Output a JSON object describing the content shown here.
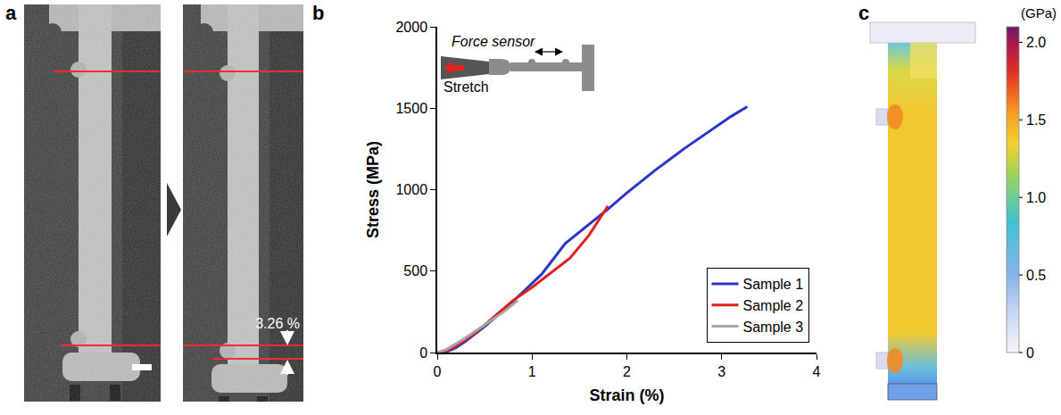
{
  "panel_labels": [
    "a",
    "b",
    "c"
  ],
  "panel_a": {
    "strain_change": "3.26 %"
  },
  "chart_data": {
    "type": "line",
    "x_label": "Strain (%)",
    "y_label": "Stress (MPa)",
    "xlim": [
      0,
      4
    ],
    "xticks": [
      0,
      1,
      2,
      3,
      4
    ],
    "ylim": [
      0,
      2000
    ],
    "yticks": [
      0,
      500,
      1000,
      1500,
      2000
    ],
    "grid": false,
    "legend": "bottom right",
    "annotations": [
      "Force sensor",
      "Stretch"
    ],
    "series": [
      {
        "name": "Sample 1",
        "color": "#2a35c8",
        "x": [
          0,
          0.1,
          0.2,
          0.3,
          0.5,
          0.7,
          0.9,
          1.1,
          1.35,
          1.5,
          1.8,
          2.0,
          2.3,
          2.6,
          2.9,
          3.1,
          3.27
        ],
        "values": [
          0,
          5,
          30,
          70,
          160,
          260,
          370,
          480,
          670,
          740,
          880,
          980,
          1120,
          1250,
          1370,
          1450,
          1510
        ]
      },
      {
        "name": "Sample 2",
        "color": "#e0201e",
        "x": [
          0,
          0.1,
          0.2,
          0.4,
          0.6,
          0.8,
          1.0,
          1.2,
          1.4,
          1.6,
          1.8
        ],
        "values": [
          0,
          10,
          40,
          120,
          220,
          320,
          400,
          490,
          580,
          720,
          900
        ]
      },
      {
        "name": "Sample 3",
        "color": "#a6a6a6",
        "x": [
          0,
          0.1,
          0.3,
          0.5,
          0.7,
          0.85
        ],
        "values": [
          0,
          20,
          90,
          170,
          250,
          320
        ]
      }
    ]
  },
  "panel_c": {
    "colorbar": {
      "title": "(GPa)",
      "range": [
        0,
        2.1
      ],
      "ticks": [
        0,
        0.5,
        {
          "value": 1,
          "label": "1.0"
        },
        1.5,
        {
          "value": 2,
          "label": "2.0"
        }
      ]
    }
  }
}
